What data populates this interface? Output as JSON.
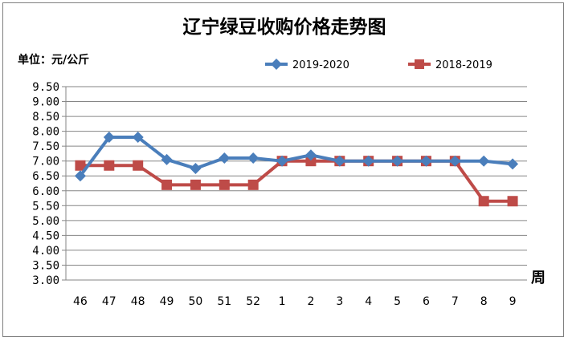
{
  "chart_data": {
    "type": "line",
    "title": "辽宁绿豆收购价格走势图",
    "unit_label": "单位：元/公斤",
    "xlabel": "周",
    "ylabel": "",
    "ylim": [
      3.0,
      9.5
    ],
    "yticks": [
      "9.50",
      "9.00",
      "8.50",
      "8.00",
      "7.50",
      "7.00",
      "6.50",
      "6.00",
      "5.50",
      "5.00",
      "4.50",
      "4.00",
      "3.50",
      "3.00"
    ],
    "categories": [
      "46",
      "47",
      "48",
      "49",
      "50",
      "51",
      "52",
      "1",
      "2",
      "3",
      "4",
      "5",
      "6",
      "7",
      "8",
      "9"
    ],
    "grid": true,
    "legend_position": "top-right",
    "series": [
      {
        "name": "2019-2020",
        "color": "#4a7ebb",
        "marker": "diamond",
        "values": [
          6.5,
          7.8,
          7.8,
          7.05,
          6.75,
          7.1,
          7.1,
          7.0,
          7.2,
          7.0,
          7.0,
          7.0,
          7.0,
          7.0,
          7.0,
          6.9
        ]
      },
      {
        "name": "2018-2019",
        "color": "#be4b48",
        "marker": "square",
        "values": [
          6.85,
          6.85,
          6.85,
          6.2,
          6.2,
          6.2,
          6.2,
          7.0,
          7.0,
          7.0,
          7.0,
          7.0,
          7.0,
          7.0,
          5.65,
          5.65
        ]
      }
    ]
  }
}
